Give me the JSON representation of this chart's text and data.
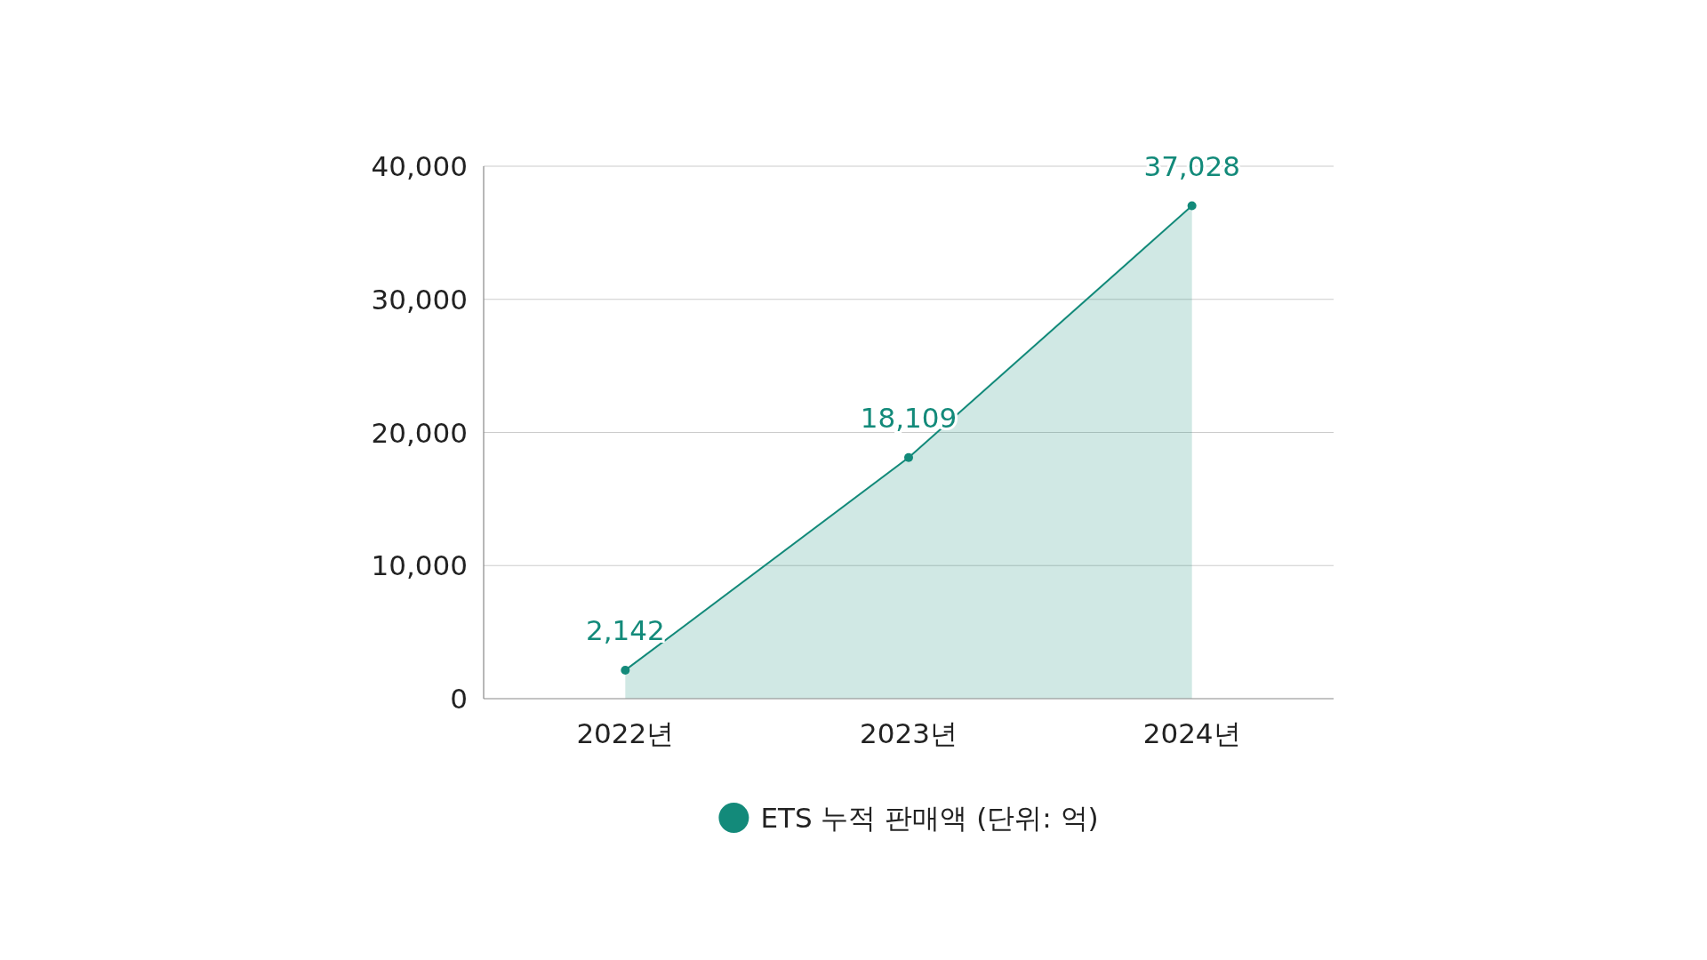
{
  "chart_data": {
    "type": "area",
    "categories": [
      "2022년",
      "2023년",
      "2024년"
    ],
    "series": [
      {
        "name": "ETS 누적 판매액 (단위: 억)",
        "color": "#138a7a",
        "values": [
          2142,
          18109,
          37028
        ],
        "value_labels": [
          "2,142",
          "18,109",
          "37,028"
        ]
      }
    ],
    "ylim": [
      0,
      40000
    ],
    "yticks": [
      0,
      {
        "value": 10000,
        "label": "10,000"
      },
      {
        "value": 20000,
        "label": "20,000"
      },
      {
        "value": 30000,
        "label": "30,000"
      },
      {
        "value": 40000,
        "label": "40,000"
      }
    ],
    "grid": "y",
    "legend": "bottom",
    "marker": "circle",
    "line_style": "solid"
  }
}
